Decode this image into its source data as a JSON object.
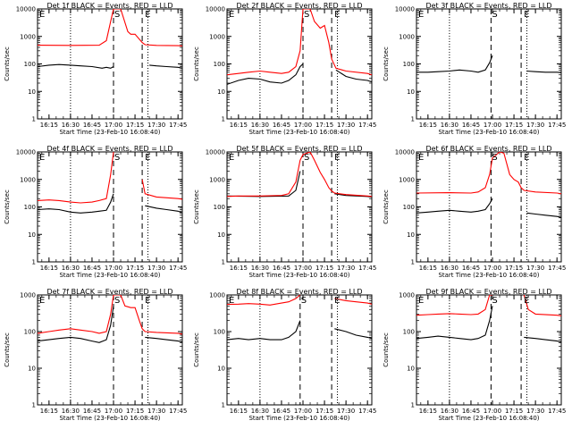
{
  "figure": {
    "marker_labels": {
      "pre": "E",
      "mid": "S",
      "post": "E"
    },
    "colors": {
      "events": "#000000",
      "lld": "#ff0000",
      "background": "#ffffff"
    }
  },
  "chart_data": [
    {
      "type": "line",
      "title": "Det 1f BLACK = Events, RED = LLD",
      "xlabel": "Start Time (23-Feb-10 16:08:40)",
      "ylabel": "Counts/sec",
      "yscale": "log",
      "ylim": [
        1,
        10000
      ],
      "yticks": [
        1,
        10,
        100,
        1000,
        10000
      ],
      "ytick_labels": [
        "1",
        "10",
        "100",
        "1000",
        "10000"
      ],
      "xticks": [
        "16:15",
        "16:30",
        "16:45",
        "17:00",
        "17:15",
        "17:30",
        "17:45"
      ],
      "markers": {
        "dotted": [
          "16:30",
          "17:24"
        ],
        "dashed": [
          "17:00",
          "17:20"
        ]
      },
      "series": [
        {
          "key": "events",
          "color": "#000000",
          "x": [
            "16:07",
            "16:15",
            "16:22",
            "16:30",
            "16:37",
            "16:45",
            "16:52",
            "16:55",
            "16:58",
            "17:00",
            "17:20",
            "17:25",
            "17:30",
            "17:37",
            "17:45",
            "17:48"
          ],
          "y": [
            80,
            90,
            95,
            90,
            85,
            80,
            70,
            75,
            70,
            80,
            null,
            90,
            85,
            80,
            75,
            70
          ]
        },
        {
          "key": "lld",
          "color": "#ff0000",
          "x": [
            "16:07",
            "16:30",
            "16:50",
            "16:55",
            "16:58",
            "17:00",
            "17:03",
            "17:05",
            "17:10",
            "17:12",
            "17:15",
            "17:20",
            "17:22",
            "17:30",
            "17:45",
            "17:48"
          ],
          "y": [
            480,
            470,
            480,
            700,
            3500,
            10000,
            10000,
            10000,
            1500,
            1200,
            1200,
            600,
            500,
            470,
            460,
            450
          ]
        }
      ]
    },
    {
      "type": "line",
      "title": "Det 2f BLACK = Events, RED = LLD",
      "xlabel": "Start Time (23-Feb-10 16:08:40)",
      "ylabel": "Counts/sec",
      "yscale": "log",
      "ylim": [
        1,
        10000
      ],
      "yticks": [
        1,
        10,
        100,
        1000,
        10000
      ],
      "ytick_labels": [
        "1",
        "10",
        "100",
        "1000",
        "10000"
      ],
      "xticks": [
        "16:15",
        "16:30",
        "16:45",
        "17:00",
        "17:15",
        "17:30",
        "17:45"
      ],
      "markers": {
        "dotted": [
          "16:30",
          "17:24"
        ],
        "dashed": [
          "17:00",
          "17:20"
        ]
      },
      "series": [
        {
          "key": "events",
          "color": "#000000",
          "x": [
            "16:07",
            "16:15",
            "16:22",
            "16:30",
            "16:37",
            "16:45",
            "16:50",
            "16:55",
            "16:58",
            "17:00",
            "17:20",
            "17:23",
            "17:30",
            "17:37",
            "17:45",
            "17:48"
          ],
          "y": [
            18,
            25,
            30,
            28,
            22,
            20,
            25,
            40,
            80,
            100,
            null,
            60,
            35,
            28,
            25,
            22
          ]
        },
        {
          "key": "lld",
          "color": "#ff0000",
          "x": [
            "16:07",
            "16:15",
            "16:22",
            "16:30",
            "16:37",
            "16:45",
            "16:50",
            "16:55",
            "16:58",
            "17:00",
            "17:05",
            "17:08",
            "17:12",
            "17:15",
            "17:18",
            "17:20",
            "17:23",
            "17:30",
            "17:45",
            "17:48"
          ],
          "y": [
            40,
            45,
            50,
            55,
            50,
            45,
            50,
            80,
            300,
            10000,
            10000,
            3500,
            2000,
            2500,
            600,
            150,
            70,
            55,
            45,
            40
          ]
        }
      ]
    },
    {
      "type": "line",
      "title": "Det 3f BLACK = Events, RED = LLD",
      "xlabel": "Start Time (23-Feb-10 16:08:40)",
      "ylabel": "Counts/sec",
      "yscale": "log",
      "ylim": [
        1,
        10000
      ],
      "yticks": [
        1,
        10,
        100,
        1000,
        10000
      ],
      "ytick_labels": [
        "1",
        "10",
        "100",
        "1000",
        "10000"
      ],
      "xticks": [
        "16:15",
        "16:30",
        "16:45",
        "17:00",
        "17:15",
        "17:30",
        "17:45"
      ],
      "markers": {
        "dotted": [
          "16:30",
          "17:24"
        ],
        "dashed": [
          "16:59",
          "17:20"
        ]
      },
      "series": [
        {
          "key": "events",
          "color": "#000000",
          "x": [
            "16:07",
            "16:15",
            "16:22",
            "16:30",
            "16:37",
            "16:45",
            "16:50",
            "16:55",
            "16:58",
            "17:00",
            "17:22",
            "17:24",
            "17:30",
            "17:37",
            "17:45",
            "17:48"
          ],
          "y": [
            50,
            50,
            52,
            55,
            60,
            55,
            50,
            60,
            110,
            200,
            null,
            55,
            52,
            50,
            50,
            48
          ]
        }
      ]
    },
    {
      "type": "line",
      "title": "Det 4f BLACK = Events, RED = LLD",
      "xlabel": "Start Time (23-Feb-10 16:08:40)",
      "ylabel": "Counts/sec",
      "yscale": "log",
      "ylim": [
        1,
        10000
      ],
      "yticks": [
        1,
        10,
        100,
        1000,
        10000
      ],
      "ytick_labels": [
        "1",
        "10",
        "100",
        "1000",
        "10000"
      ],
      "xticks": [
        "16:15",
        "16:30",
        "16:45",
        "17:00",
        "17:15",
        "17:30",
        "17:45"
      ],
      "markers": {
        "dotted": [
          "16:30",
          "17:24"
        ],
        "dashed": [
          "17:00",
          "17:20"
        ]
      },
      "series": [
        {
          "key": "events",
          "color": "#000000",
          "x": [
            "16:07",
            "16:15",
            "16:22",
            "16:30",
            "16:37",
            "16:45",
            "16:50",
            "16:55",
            "16:58",
            "17:00",
            "17:20",
            "17:22",
            "17:30",
            "17:37",
            "17:45",
            "17:48"
          ],
          "y": [
            80,
            85,
            80,
            65,
            60,
            65,
            70,
            75,
            150,
            300,
            null,
            110,
            90,
            80,
            70,
            60
          ]
        },
        {
          "key": "lld",
          "color": "#ff0000",
          "x": [
            "16:07",
            "16:15",
            "16:22",
            "16:30",
            "16:37",
            "16:45",
            "16:50",
            "16:55",
            "16:58",
            "17:00",
            "17:10",
            "17:12",
            "17:15",
            "17:20",
            "17:22",
            "17:30",
            "17:45",
            "17:48"
          ],
          "y": [
            170,
            180,
            170,
            150,
            140,
            150,
            170,
            200,
            1500,
            10000,
            null,
            10000,
            null,
            1000,
            300,
            230,
            200,
            190
          ]
        }
      ]
    },
    {
      "type": "line",
      "title": "Det 5f BLACK = Events, RED = LLD",
      "xlabel": "Start Time (23-Feb-10 16:08:40)",
      "ylabel": "Counts/sec",
      "yscale": "log",
      "ylim": [
        1,
        10000
      ],
      "yticks": [
        1,
        10,
        100,
        1000,
        10000
      ],
      "ytick_labels": [
        "1",
        "10",
        "100",
        "1000",
        "10000"
      ],
      "xticks": [
        "16:15",
        "16:30",
        "16:45",
        "17:00",
        "17:15",
        "17:30",
        "17:45"
      ],
      "markers": {
        "dotted": [
          "16:30",
          "17:24"
        ],
        "dashed": [
          "17:00",
          "17:20"
        ]
      },
      "series": [
        {
          "key": "events",
          "color": "#000000",
          "x": [
            "16:07",
            "16:30",
            "16:50",
            "16:55",
            "16:58",
            "17:00",
            "17:20",
            "17:22",
            "17:30",
            "17:45",
            "17:48"
          ],
          "y": [
            250,
            240,
            250,
            400,
            2000,
            null,
            null,
            300,
            260,
            240,
            230
          ]
        },
        {
          "key": "lld",
          "color": "#ff0000",
          "x": [
            "16:07",
            "16:15",
            "16:30",
            "16:45",
            "16:50",
            "16:55",
            "16:58",
            "17:00",
            "17:05",
            "17:08",
            "17:12",
            "17:15",
            "17:18",
            "17:20",
            "17:22",
            "17:30",
            "17:45",
            "17:48"
          ],
          "y": [
            240,
            250,
            250,
            260,
            300,
            800,
            5000,
            8000,
            10000,
            5000,
            1800,
            1000,
            500,
            380,
            320,
            280,
            250,
            240
          ]
        }
      ]
    },
    {
      "type": "line",
      "title": "Det 6f BLACK = Events, RED = LLD",
      "xlabel": "Start Time (23-Feb-10 16:08:40)",
      "ylabel": "Counts/sec",
      "yscale": "log",
      "ylim": [
        1,
        10000
      ],
      "yticks": [
        1,
        10,
        100,
        1000,
        10000
      ],
      "ytick_labels": [
        "1",
        "10",
        "100",
        "1000",
        "10000"
      ],
      "xticks": [
        "16:15",
        "16:30",
        "16:45",
        "17:00",
        "17:15",
        "17:30",
        "17:45"
      ],
      "markers": {
        "dotted": [
          "16:30",
          "17:24"
        ],
        "dashed": [
          "16:59",
          "17:20"
        ]
      },
      "series": [
        {
          "key": "events",
          "color": "#000000",
          "x": [
            "16:07",
            "16:15",
            "16:22",
            "16:30",
            "16:37",
            "16:45",
            "16:50",
            "16:55",
            "16:58",
            "17:00",
            "17:22",
            "17:24",
            "17:30",
            "17:37",
            "17:45",
            "17:48"
          ],
          "y": [
            60,
            65,
            70,
            75,
            70,
            65,
            70,
            80,
            130,
            200,
            null,
            60,
            55,
            50,
            45,
            42
          ]
        },
        {
          "key": "lld",
          "color": "#ff0000",
          "x": [
            "16:07",
            "16:30",
            "16:45",
            "16:50",
            "16:55",
            "16:58",
            "17:00",
            "17:05",
            "17:08",
            "17:12",
            "17:15",
            "17:18",
            "17:20",
            "17:22",
            "17:30",
            "17:45",
            "17:48"
          ],
          "y": [
            320,
            330,
            320,
            350,
            500,
            1500,
            6000,
            10000,
            9000,
            1500,
            1000,
            800,
            500,
            400,
            350,
            320,
            300
          ]
        }
      ]
    },
    {
      "type": "line",
      "title": "Det 7f BLACK = Events, RED = LLD",
      "xlabel": "Start Time (23-Feb-10 16:08:40)",
      "ylabel": "Counts/sec",
      "yscale": "log",
      "ylim": [
        1,
        1000
      ],
      "yticks": [
        1,
        10,
        100,
        1000
      ],
      "ytick_labels": [
        "1",
        "10",
        "100",
        "1000"
      ],
      "xticks": [
        "16:15",
        "16:30",
        "16:45",
        "17:00",
        "17:15",
        "17:30",
        "17:45"
      ],
      "markers": {
        "dotted": [
          "16:30",
          "17:24"
        ],
        "dashed": [
          "17:00",
          "17:20"
        ]
      },
      "series": [
        {
          "key": "events",
          "color": "#000000",
          "x": [
            "16:07",
            "16:15",
            "16:22",
            "16:30",
            "16:37",
            "16:45",
            "16:50",
            "16:55",
            "16:58",
            "17:00",
            "17:20",
            "17:22",
            "17:30",
            "17:37",
            "17:45",
            "17:48"
          ],
          "y": [
            55,
            60,
            65,
            70,
            65,
            55,
            50,
            60,
            150,
            500,
            null,
            70,
            65,
            60,
            55,
            52
          ]
        },
        {
          "key": "lld",
          "color": "#ff0000",
          "x": [
            "16:07",
            "16:15",
            "16:22",
            "16:30",
            "16:37",
            "16:45",
            "16:50",
            "16:55",
            "16:58",
            "17:00",
            "17:05",
            "17:08",
            "17:12",
            "17:15",
            "17:18",
            "17:20",
            "17:22",
            "17:30",
            "17:45",
            "17:48"
          ],
          "y": [
            90,
            100,
            110,
            120,
            110,
            100,
            90,
            100,
            300,
            1000,
            1000,
            500,
            450,
            450,
            200,
            120,
            100,
            95,
            90,
            85
          ]
        }
      ]
    },
    {
      "type": "line",
      "title": "Det 8f BLACK = Events, RED = LLD",
      "xlabel": "Start Time (23-Feb-10 16:08:40)",
      "ylabel": "Counts/sec",
      "yscale": "log",
      "ylim": [
        1,
        1000
      ],
      "yticks": [
        1,
        10,
        100,
        1000
      ],
      "ytick_labels": [
        "1",
        "10",
        "100",
        "1000"
      ],
      "xticks": [
        "16:15",
        "16:30",
        "16:45",
        "17:00",
        "17:15",
        "17:30",
        "17:45"
      ],
      "markers": {
        "dotted": [
          "16:30",
          "17:24"
        ],
        "dashed": [
          "16:58",
          "17:20"
        ]
      },
      "series": [
        {
          "key": "events",
          "color": "#000000",
          "x": [
            "16:07",
            "16:15",
            "16:22",
            "16:30",
            "16:37",
            "16:45",
            "16:50",
            "16:55",
            "16:58",
            "17:00",
            "17:20",
            "17:22",
            "17:30",
            "17:37",
            "17:45",
            "17:48"
          ],
          "y": [
            60,
            65,
            60,
            65,
            60,
            60,
            70,
            100,
            200,
            null,
            null,
            120,
            100,
            80,
            70,
            65
          ]
        },
        {
          "key": "lld",
          "color": "#ff0000",
          "x": [
            "16:07",
            "16:15",
            "16:22",
            "16:30",
            "16:37",
            "16:45",
            "16:50",
            "16:55",
            "16:58",
            "17:00",
            "17:20",
            "17:22",
            "17:30",
            "17:37",
            "17:45",
            "17:48"
          ],
          "y": [
            550,
            560,
            580,
            560,
            530,
            600,
            650,
            800,
            1000,
            null,
            null,
            800,
            700,
            650,
            600,
            560
          ]
        }
      ]
    },
    {
      "type": "line",
      "title": "Det 9f BLACK = Events, RED = LLD",
      "xlabel": "Start Time (23-Feb-10 16:08:40)",
      "ylabel": "Counts/sec",
      "yscale": "log",
      "ylim": [
        1,
        1000
      ],
      "yticks": [
        1,
        10,
        100,
        1000
      ],
      "ytick_labels": [
        "1",
        "10",
        "100",
        "1000"
      ],
      "xticks": [
        "16:15",
        "16:30",
        "16:45",
        "17:00",
        "17:15",
        "17:30",
        "17:45"
      ],
      "markers": {
        "dotted": [
          "16:30",
          "17:24"
        ],
        "dashed": [
          "16:59",
          "17:20"
        ]
      },
      "series": [
        {
          "key": "events",
          "color": "#000000",
          "x": [
            "16:07",
            "16:15",
            "16:22",
            "16:30",
            "16:37",
            "16:45",
            "16:50",
            "16:55",
            "16:58",
            "17:00",
            "17:20",
            "17:22",
            "17:30",
            "17:37",
            "17:45",
            "17:48"
          ],
          "y": [
            65,
            70,
            75,
            70,
            65,
            60,
            65,
            80,
            200,
            500,
            null,
            70,
            65,
            60,
            55,
            52
          ]
        },
        {
          "key": "lld",
          "color": "#ff0000",
          "x": [
            "16:07",
            "16:15",
            "16:22",
            "16:30",
            "16:37",
            "16:45",
            "16:50",
            "16:55",
            "16:58",
            "17:00",
            "17:20",
            "17:22",
            "17:25",
            "17:30",
            "17:45",
            "17:48"
          ],
          "y": [
            280,
            290,
            300,
            310,
            300,
            290,
            300,
            400,
            1000,
            1000,
            null,
            1000,
            400,
            300,
            280,
            270
          ]
        }
      ]
    }
  ]
}
